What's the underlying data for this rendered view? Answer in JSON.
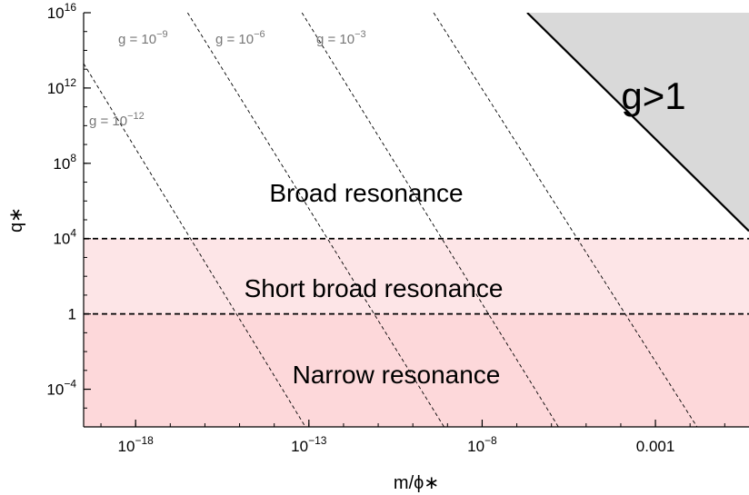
{
  "chart_data": {
    "type": "area",
    "xlabel": "m/ϕ∗",
    "ylabel": "q∗",
    "x_scale": "log10",
    "y_scale": "log10",
    "xlim_log10": [
      -19.5,
      -0.3
    ],
    "ylim_log10": [
      -6,
      16
    ],
    "x_ticks": [
      {
        "log10": -18,
        "base": "10",
        "exp": "−18"
      },
      {
        "log10": -13,
        "base": "10",
        "exp": "−13"
      },
      {
        "log10": -8,
        "base": "10",
        "exp": "−8"
      },
      {
        "log10": -3,
        "base": "0.001",
        "exp": ""
      }
    ],
    "y_ticks": [
      {
        "log10": 16,
        "base": "10",
        "exp": "16"
      },
      {
        "log10": 12,
        "base": "10",
        "exp": "12"
      },
      {
        "log10": 8,
        "base": "10",
        "exp": "8"
      },
      {
        "log10": 4,
        "base": "10",
        "exp": "4"
      },
      {
        "log10": 0,
        "base": "1",
        "exp": ""
      },
      {
        "log10": -4,
        "base": "10",
        "exp": "−4"
      }
    ],
    "regions": [
      {
        "name": "Broad resonance",
        "y_from_log10": 4,
        "y_to_log10": 16,
        "color": "#ffffff"
      },
      {
        "name": "Short broad resonance",
        "y_from_log10": 0,
        "y_to_log10": 4,
        "color": "#fde5e7"
      },
      {
        "name": "Narrow resonance",
        "y_from_log10": -6,
        "y_to_log10": 0,
        "color": "#fdd8da"
      }
    ],
    "boundary_lines": [
      {
        "name": "q∗ = 10^4",
        "y_log10": 4,
        "style": "dashed"
      },
      {
        "name": "q∗ = 1",
        "y_log10": 0,
        "style": "dashed"
      }
    ],
    "g_gt_1_region": {
      "label": "g>1",
      "color": "#d9d9d9",
      "boundary_points_log10": [
        [
          -6.7,
          16
        ],
        [
          -0.3,
          4.4
        ]
      ]
    },
    "coupling_lines": [
      {
        "base": "g = 10",
        "exp": "−12",
        "points_log10": [
          [
            -19.5,
            13.3
          ],
          [
            -13.1,
            -6
          ]
        ]
      },
      {
        "base": "g = 10",
        "exp": "−9",
        "points_log10": [
          [
            -16.5,
            16
          ],
          [
            -9.1,
            -6
          ]
        ]
      },
      {
        "base": "g = 10",
        "exp": "−6",
        "points_log10": [
          [
            -13.2,
            16
          ],
          [
            -5.8,
            -6
          ]
        ]
      },
      {
        "base": "g = 10",
        "exp": "−3",
        "points_log10": [
          [
            -9.4,
            16
          ],
          [
            -1.8,
            -6
          ]
        ]
      }
    ]
  },
  "colors": {
    "axis": "#000000",
    "gray_region": "#d9d9d9",
    "coupling_line": "#000000",
    "g_label": "#777777"
  }
}
